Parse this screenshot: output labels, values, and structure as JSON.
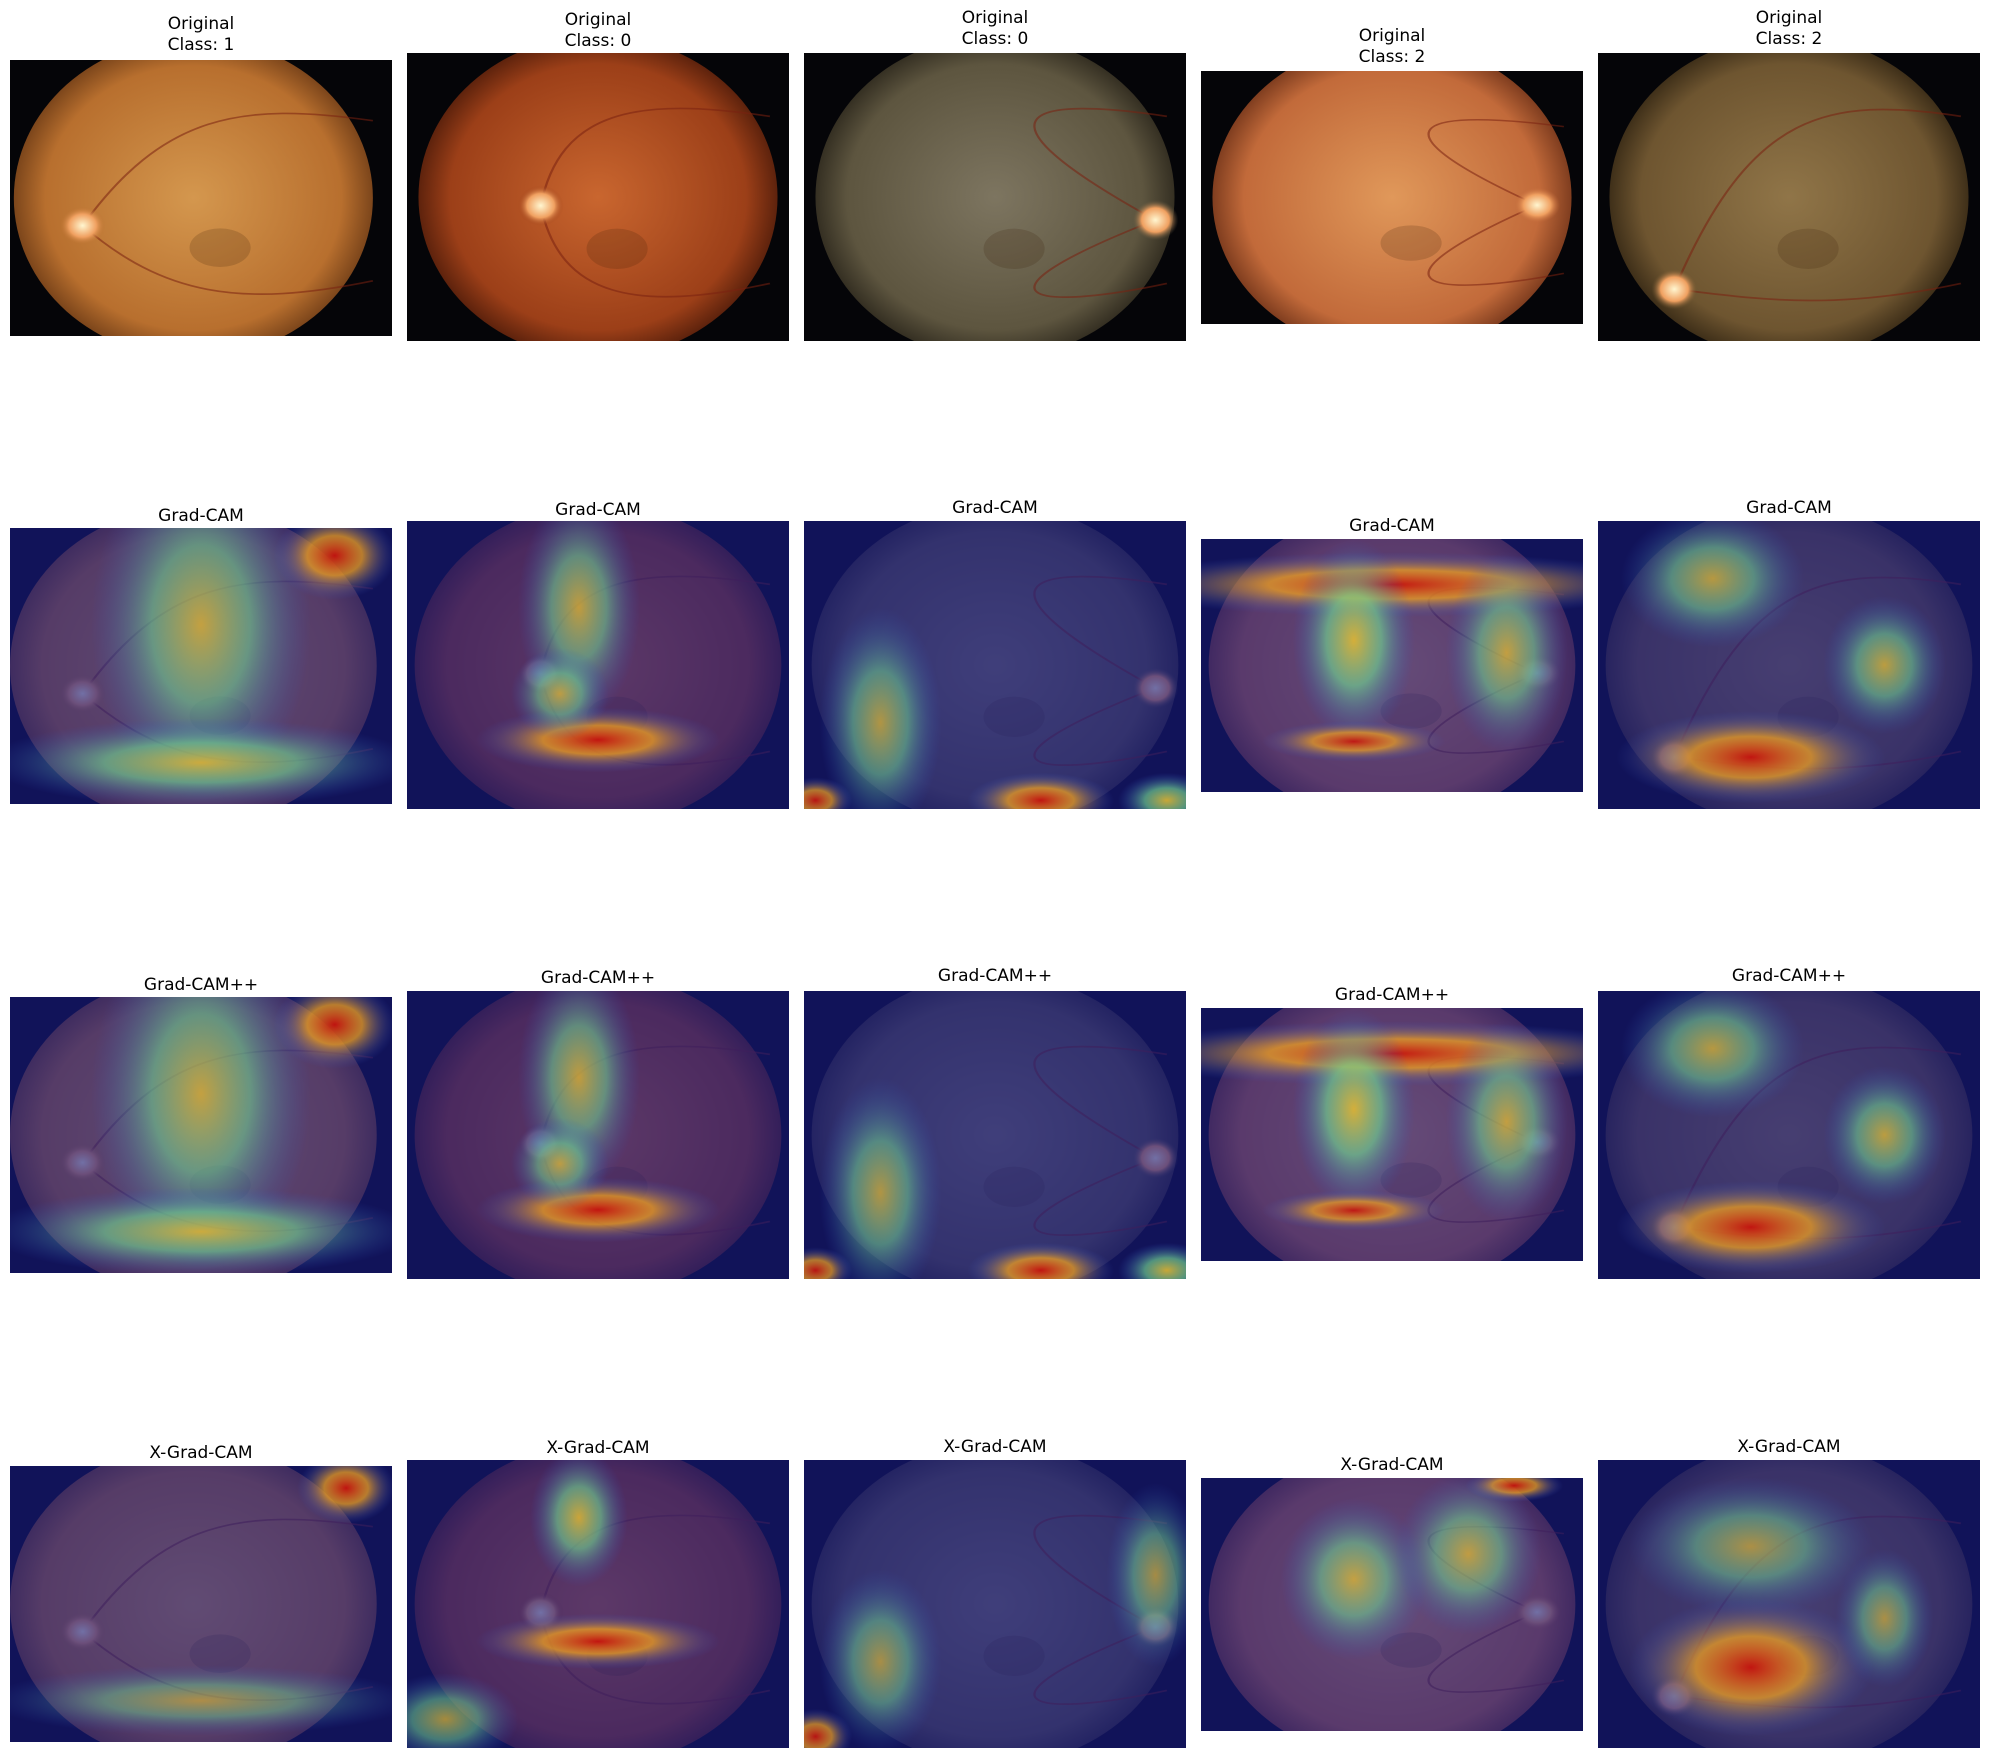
{
  "figure": {
    "rows": [
      {
        "method": "Original",
        "overlay": false,
        "panels": [
          {
            "title": "Original\nClass: 1",
            "image": "fundus-photo"
          },
          {
            "title": "Original\nClass: 0",
            "image": "fundus-photo"
          },
          {
            "title": "Original\nClass: 0",
            "image": "fundus-photo"
          },
          {
            "title": "Original\nClass: 2",
            "image": "fundus-photo"
          },
          {
            "title": "Original\nClass: 2",
            "image": "fundus-photo"
          }
        ]
      },
      {
        "method": "Grad-CAM",
        "overlay": true,
        "panels": [
          {
            "title": "Grad-CAM",
            "image": "fundus-heatmap-overlay"
          },
          {
            "title": "Grad-CAM",
            "image": "fundus-heatmap-overlay"
          },
          {
            "title": "Grad-CAM",
            "image": "fundus-heatmap-overlay"
          },
          {
            "title": "Grad-CAM",
            "image": "fundus-heatmap-overlay"
          },
          {
            "title": "Grad-CAM",
            "image": "fundus-heatmap-overlay"
          }
        ]
      },
      {
        "method": "Grad-CAM++",
        "overlay": true,
        "panels": [
          {
            "title": "Grad-CAM++",
            "image": "fundus-heatmap-overlay"
          },
          {
            "title": "Grad-CAM++",
            "image": "fundus-heatmap-overlay"
          },
          {
            "title": "Grad-CAM++",
            "image": "fundus-heatmap-overlay"
          },
          {
            "title": "Grad-CAM++",
            "image": "fundus-heatmap-overlay"
          },
          {
            "title": "Grad-CAM++",
            "image": "fundus-heatmap-overlay"
          }
        ]
      },
      {
        "method": "X-Grad-CAM",
        "overlay": true,
        "panels": [
          {
            "title": "X-Grad-CAM",
            "image": "fundus-heatmap-overlay"
          },
          {
            "title": "X-Grad-CAM",
            "image": "fundus-heatmap-overlay"
          },
          {
            "title": "X-Grad-CAM",
            "image": "fundus-heatmap-overlay"
          },
          {
            "title": "X-Grad-CAM",
            "image": "fundus-heatmap-overlay"
          },
          {
            "title": "X-Grad-CAM",
            "image": "fundus-heatmap-overlay"
          }
        ]
      }
    ]
  },
  "colors": {
    "background": "#ffffff",
    "fundus_tones": [
      "#c98a45",
      "#b8582a",
      "#6e6650",
      "#d2884e",
      "#8a6a40"
    ],
    "heatmap_low": "#12127a",
    "heatmap_mid": "#5fd0a0",
    "heatmap_high": "#e02010"
  }
}
